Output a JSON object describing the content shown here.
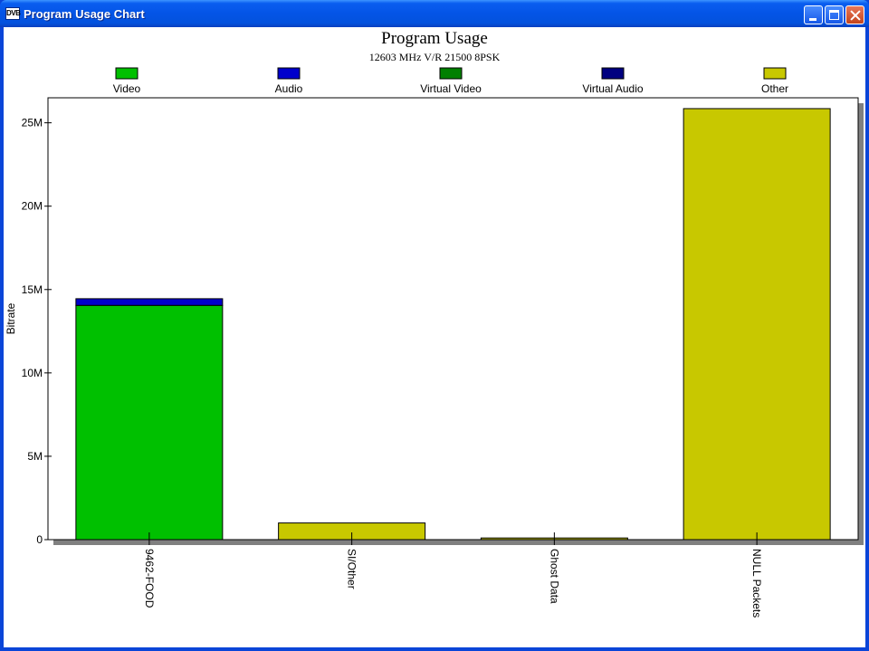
{
  "window": {
    "title": "Program Usage Chart",
    "icon_text": "DVB"
  },
  "colors": {
    "Video": "#00c000",
    "Audio": "#0000cc",
    "Virtual Video": "#008000",
    "Virtual Audio": "#000080",
    "Other": "#c8c800"
  },
  "chart_data": {
    "type": "bar",
    "stacked": true,
    "title": "Program Usage",
    "subtitle": "12603 MHz V/R 21500 8PSK",
    "ylabel": "Bitrate",
    "xlabel": "",
    "ylim": [
      0,
      26500000
    ],
    "yticks": [
      {
        "value": 0,
        "label": "0"
      },
      {
        "value": 5000000,
        "label": "5M"
      },
      {
        "value": 10000000,
        "label": "10M"
      },
      {
        "value": 15000000,
        "label": "15M"
      },
      {
        "value": 20000000,
        "label": "20M"
      },
      {
        "value": 25000000,
        "label": "25M"
      }
    ],
    "categories": [
      "9462-FOOD",
      "SI/Other",
      "Ghost Data",
      "NULL Packets"
    ],
    "legend_position": "top",
    "series": [
      {
        "name": "Video",
        "values": [
          14050000,
          0,
          0,
          0
        ]
      },
      {
        "name": "Audio",
        "values": [
          400000,
          0,
          0,
          0
        ]
      },
      {
        "name": "Virtual Video",
        "values": [
          0,
          0,
          0,
          0
        ]
      },
      {
        "name": "Virtual Audio",
        "values": [
          0,
          0,
          0,
          0
        ]
      },
      {
        "name": "Other",
        "values": [
          0,
          1000000,
          100000,
          25850000
        ]
      }
    ]
  }
}
